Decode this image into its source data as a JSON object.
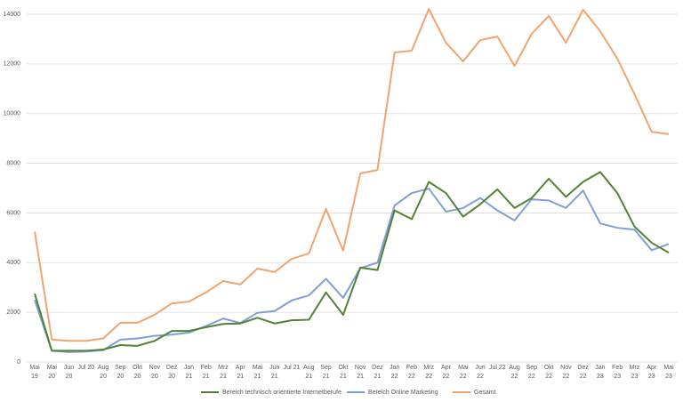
{
  "chart_data": {
    "type": "line",
    "categories": [
      "Mai\n19",
      "Mai\n20",
      "Jun\n20",
      "Jul 20",
      "Aug\n20",
      "Sep\n20",
      "Okt\n20",
      "Nov\n20",
      "Dez\n20",
      "Jan\n21",
      "Feb\n21",
      "Mrz\n21",
      "Apr\n21",
      "Mai\n21",
      "Jun\n21",
      "Jul 21",
      "Aug\n21",
      "Sep\n21",
      "Okt\n21",
      "Nov\n21",
      "Dez\n21",
      "Jan\n22",
      "Feb\n22",
      "Mrz\n22",
      "Apr\n22",
      "Mai\n22",
      "Jun\n22",
      "Jul 22",
      "Aug\n22",
      "Sep\n22",
      "Okt\n22",
      "Nov\n22",
      "Dez\n22",
      "Jan\n23",
      "Feb\n23",
      "Mrz\n23",
      "Apr\n23",
      "Mai\n23"
    ],
    "series": [
      {
        "name": "Bereich technisch orientierte Internetberufe",
        "color": "#548235",
        "values": [
          2750,
          450,
          450,
          450,
          500,
          680,
          650,
          850,
          1250,
          1250,
          1400,
          1530,
          1550,
          1780,
          1550,
          1680,
          1700,
          2800,
          1900,
          3800,
          3700,
          6100,
          5750,
          7250,
          6800,
          5850,
          6350,
          6950,
          6200,
          6600,
          7380,
          6650,
          7250,
          7650,
          6800,
          5450,
          4800,
          4400
        ]
      },
      {
        "name": "Bereich Online Marketing",
        "color": "#7f9fd8",
        "values": [
          2500,
          450,
          400,
          420,
          480,
          900,
          950,
          1050,
          1100,
          1180,
          1450,
          1750,
          1570,
          1980,
          2050,
          2480,
          2680,
          3350,
          2580,
          3780,
          4000,
          6300,
          6800,
          6980,
          6050,
          6200,
          6600,
          6100,
          5700,
          6550,
          6500,
          6200,
          6900,
          5580,
          5400,
          5330,
          4500,
          4750
        ]
      },
      {
        "name": "Gesamt",
        "color": "#f0a46e",
        "values": [
          5250,
          900,
          850,
          850,
          950,
          1580,
          1580,
          1900,
          2360,
          2430,
          2800,
          3260,
          3120,
          3760,
          3620,
          4150,
          4370,
          6160,
          4480,
          7590,
          7730,
          12460,
          12530,
          14210,
          12850,
          12100,
          12960,
          13100,
          11920,
          13210,
          13930,
          12850,
          14180,
          13320,
          12210,
          10780,
          9270,
          9170
        ]
      }
    ],
    "ylim": [
      0,
      14000
    ],
    "yticks": [
      0,
      2000,
      4000,
      6000,
      8000,
      10000,
      12000,
      14000
    ],
    "grid": true,
    "legend": "bottom"
  }
}
